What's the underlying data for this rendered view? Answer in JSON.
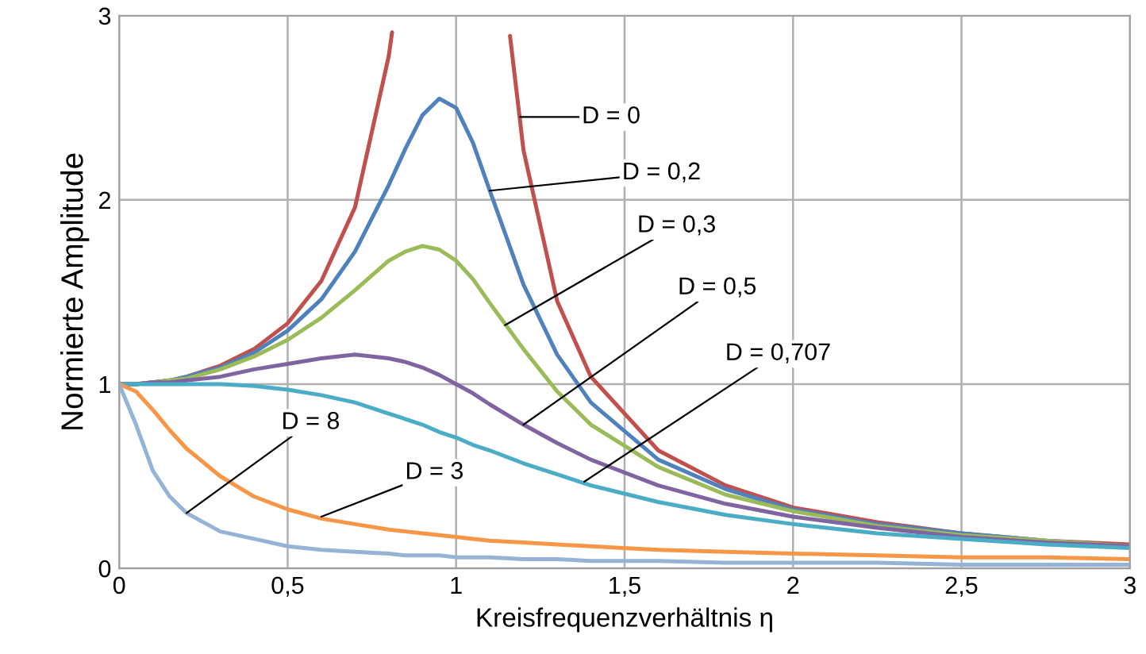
{
  "chart_data": {
    "type": "line",
    "xlabel": "Kreisfrequenzverhältnis η",
    "ylabel": "Normierte Amplitude",
    "x": [
      0,
      0.05,
      0.1,
      0.15,
      0.2,
      0.3,
      0.4,
      0.5,
      0.6,
      0.7,
      0.8,
      0.85,
      0.9,
      0.95,
      1,
      1.05,
      1.1,
      1.2,
      1.3,
      1.4,
      1.6,
      1.8,
      2,
      2.25,
      2.5,
      2.75,
      3
    ],
    "series": [
      {
        "color": "#c0504d",
        "x": [
          0,
          0.05,
          0.1,
          0.15,
          0.2,
          0.3,
          0.4,
          0.5,
          0.6,
          0.7,
          0.8,
          0.81,
          0.9,
          1.16,
          1.2,
          1.3,
          1.4,
          1.6,
          1.8,
          2,
          2.25,
          2.5,
          2.75,
          3
        ],
        "values": [
          1,
          1.0,
          1.01,
          1.02,
          1.04,
          1.1,
          1.19,
          1.33,
          1.56,
          1.96,
          2.78,
          2.91,
          null,
          2.89,
          2.27,
          1.45,
          1.04,
          0.64,
          0.45,
          0.33,
          0.25,
          0.19,
          0.15,
          0.13
        ]
      },
      {
        "color": "#4f81bd",
        "values": [
          1,
          1.0,
          1.01,
          1.02,
          1.04,
          1.09,
          1.17,
          1.29,
          1.46,
          1.72,
          2.08,
          2.28,
          2.46,
          2.55,
          2.5,
          2.31,
          2.05,
          1.54,
          1.16,
          0.9,
          0.59,
          0.43,
          0.32,
          0.24,
          0.19,
          0.15,
          0.12
        ]
      },
      {
        "color": "#9bbb59",
        "values": [
          1,
          1.0,
          1.01,
          1.02,
          1.03,
          1.08,
          1.15,
          1.24,
          1.36,
          1.51,
          1.67,
          1.72,
          1.75,
          1.73,
          1.67,
          1.57,
          1.44,
          1.19,
          0.96,
          0.78,
          0.55,
          0.4,
          0.31,
          0.23,
          0.18,
          0.15,
          0.12
        ]
      },
      {
        "color": "#8064a2",
        "values": [
          1,
          1.0,
          1.01,
          1.01,
          1.02,
          1.04,
          1.08,
          1.11,
          1.14,
          1.16,
          1.14,
          1.12,
          1.09,
          1.05,
          1,
          0.95,
          0.89,
          0.78,
          0.68,
          0.59,
          0.45,
          0.35,
          0.28,
          0.22,
          0.17,
          0.14,
          0.12
        ]
      },
      {
        "color": "#4bacc6",
        "values": [
          1,
          1.0,
          1.0,
          1.0,
          1.0,
          1.0,
          0.99,
          0.97,
          0.94,
          0.9,
          0.84,
          0.81,
          0.78,
          0.74,
          0.71,
          0.67,
          0.64,
          0.57,
          0.51,
          0.45,
          0.36,
          0.29,
          0.24,
          0.19,
          0.16,
          0.13,
          0.11
        ]
      },
      {
        "color": "#f79646",
        "values": [
          1,
          0.96,
          0.86,
          0.75,
          0.65,
          0.5,
          0.39,
          0.32,
          0.27,
          0.24,
          0.21,
          0.2,
          0.19,
          0.18,
          0.17,
          0.16,
          0.15,
          0.14,
          0.13,
          0.12,
          0.1,
          0.09,
          0.08,
          0.07,
          0.06,
          0.06,
          0.05
        ]
      },
      {
        "color": "#95b3d7",
        "values": [
          1,
          0.78,
          0.53,
          0.39,
          0.3,
          0.2,
          0.16,
          0.12,
          0.1,
          0.09,
          0.08,
          0.07,
          0.07,
          0.07,
          0.06,
          0.06,
          0.06,
          0.05,
          0.05,
          0.04,
          0.04,
          0.03,
          0.03,
          0.03,
          0.02,
          0.02,
          0.02
        ]
      }
    ],
    "annotations": [
      {
        "text": "D = 0",
        "x": 1.19,
        "y": 2.45
      },
      {
        "text": "D = 0,2",
        "x": 1.1,
        "y": 2.05
      },
      {
        "text": "D = 0,3",
        "x": 1.145,
        "y": 1.32
      },
      {
        "text": "D = 0,5",
        "x": 1.2,
        "y": 0.78
      },
      {
        "text": "D = 0,707",
        "x": 1.38,
        "y": 0.47
      },
      {
        "text": "D = 3",
        "x": 0.6,
        "y": 0.28
      },
      {
        "text": "D = 8",
        "x": 0.2,
        "y": 0.3
      }
    ],
    "xlim": [
      0,
      3
    ],
    "ylim": [
      0,
      3
    ],
    "xticks": [
      0,
      {
        "value": 0.5,
        "label": "0,5"
      },
      1,
      {
        "value": 1.5,
        "label": "1,5"
      },
      2,
      {
        "value": 2.5,
        "label": "2,5"
      },
      3
    ],
    "yticks": [
      0,
      1,
      2,
      3
    ],
    "grid": true
  }
}
